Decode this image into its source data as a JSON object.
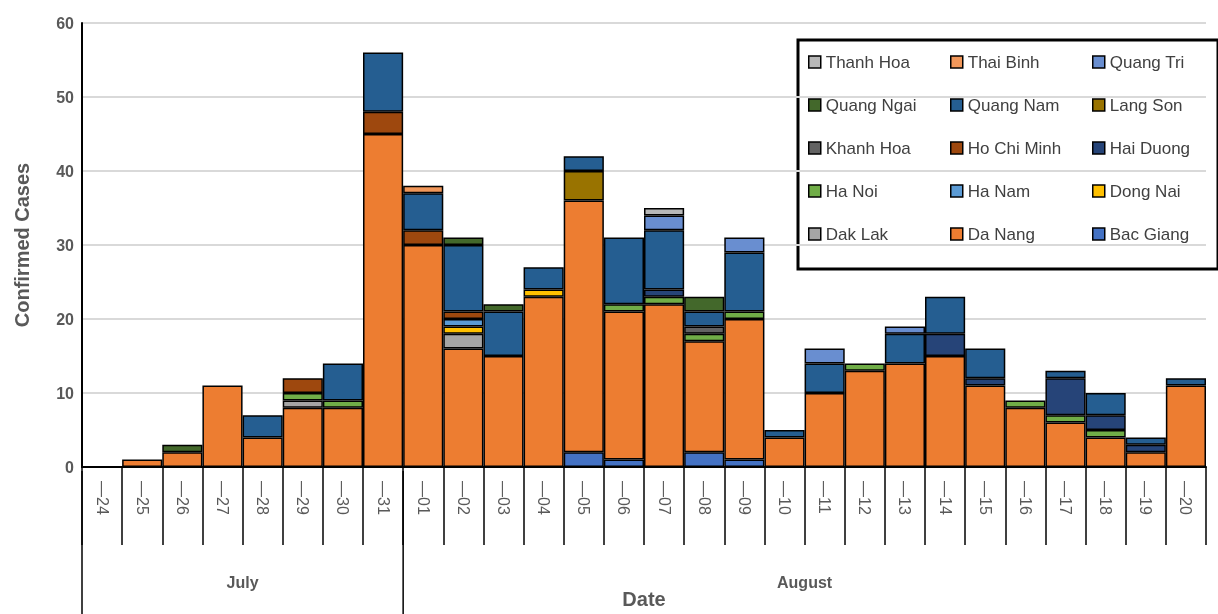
{
  "chart_data": {
    "type": "bar",
    "stacked": true,
    "xlabel": "Date",
    "ylabel": "Confirmed Cases",
    "categories": [
      "—24",
      "—25",
      "—26",
      "—27",
      "—28",
      "—29",
      "—30",
      "—31",
      "—01",
      "—02",
      "—03",
      "—04",
      "—05",
      "—06",
      "—07",
      "—08",
      "—09",
      "—10",
      "—11",
      "—12",
      "—13",
      "—14",
      "—15",
      "—16",
      "—17",
      "—18",
      "—19",
      "—20"
    ],
    "annotations": [
      "July",
      "August"
    ],
    "ylim": [
      0,
      60
    ],
    "yticks": [
      0,
      10,
      20,
      30,
      40,
      50,
      60
    ],
    "grid": "y",
    "legend": "top right",
    "series": [
      {
        "name": "Bac Giang",
        "color": "#4472c4",
        "values": [
          null,
          null,
          null,
          null,
          null,
          null,
          null,
          null,
          null,
          null,
          null,
          null,
          2,
          1,
          null,
          2,
          1,
          null,
          null,
          null,
          null,
          null,
          null,
          null,
          null,
          null,
          null,
          null
        ]
      },
      {
        "name": "Da Nang",
        "color": "#ed7d31",
        "values": [
          null,
          1,
          2,
          11,
          4,
          8,
          8,
          45,
          30,
          16,
          15,
          23,
          34,
          20,
          22,
          15,
          19,
          4,
          10,
          13,
          14,
          15,
          11,
          8,
          6,
          4,
          2,
          11
        ]
      },
      {
        "name": "Dak Lak",
        "color": "#a5a5a5",
        "values": [
          null,
          null,
          null,
          null,
          null,
          1,
          null,
          null,
          null,
          2,
          null,
          null,
          null,
          null,
          null,
          null,
          null,
          null,
          null,
          null,
          null,
          null,
          null,
          null,
          null,
          null,
          null,
          null
        ]
      },
      {
        "name": "Dong Nai",
        "color": "#ffc000",
        "values": [
          null,
          null,
          null,
          null,
          null,
          null,
          null,
          null,
          null,
          1,
          null,
          1,
          null,
          null,
          null,
          null,
          null,
          null,
          null,
          null,
          null,
          null,
          null,
          null,
          null,
          null,
          null,
          null
        ]
      },
      {
        "name": "Ha Nam",
        "color": "#5b9bd5",
        "values": [
          null,
          null,
          null,
          null,
          null,
          null,
          null,
          null,
          null,
          1,
          null,
          null,
          null,
          null,
          null,
          null,
          null,
          null,
          null,
          null,
          null,
          null,
          null,
          null,
          null,
          null,
          null,
          null
        ]
      },
      {
        "name": "Ha Noi",
        "color": "#70ad47",
        "values": [
          null,
          null,
          null,
          null,
          null,
          1,
          1,
          null,
          null,
          null,
          null,
          null,
          null,
          1,
          1,
          1,
          1,
          null,
          null,
          1,
          null,
          null,
          null,
          1,
          1,
          1,
          null,
          null
        ]
      },
      {
        "name": "Hai Duong",
        "color": "#264478",
        "values": [
          null,
          null,
          null,
          null,
          null,
          null,
          null,
          null,
          null,
          null,
          null,
          null,
          null,
          null,
          1,
          null,
          null,
          null,
          null,
          null,
          null,
          3,
          1,
          null,
          5,
          2,
          1,
          null
        ]
      },
      {
        "name": "Ho Chi Minh",
        "color": "#9e480e",
        "values": [
          null,
          null,
          null,
          null,
          null,
          2,
          null,
          3,
          2,
          1,
          null,
          null,
          null,
          null,
          null,
          null,
          null,
          null,
          null,
          null,
          null,
          null,
          null,
          null,
          null,
          null,
          null,
          null
        ]
      },
      {
        "name": "Khanh Hoa",
        "color": "#636363",
        "values": [
          null,
          null,
          null,
          null,
          null,
          null,
          null,
          null,
          null,
          null,
          null,
          null,
          null,
          null,
          null,
          1,
          null,
          null,
          null,
          null,
          null,
          null,
          null,
          null,
          null,
          null,
          null,
          null
        ]
      },
      {
        "name": "Lang Son",
        "color": "#997300",
        "values": [
          null,
          null,
          null,
          null,
          null,
          null,
          null,
          null,
          null,
          null,
          null,
          null,
          4,
          null,
          null,
          null,
          null,
          null,
          null,
          null,
          null,
          null,
          null,
          null,
          null,
          null,
          null,
          null
        ]
      },
      {
        "name": "Quang Nam",
        "color": "#255e91",
        "values": [
          null,
          null,
          null,
          null,
          3,
          null,
          5,
          8,
          5,
          9,
          6,
          3,
          2,
          9,
          8,
          2,
          8,
          1,
          4,
          null,
          4,
          5,
          4,
          null,
          1,
          3,
          1,
          1
        ]
      },
      {
        "name": "Quang Ngai",
        "color": "#43682b",
        "values": [
          null,
          null,
          1,
          null,
          null,
          null,
          null,
          null,
          null,
          1,
          1,
          null,
          null,
          null,
          null,
          2,
          null,
          null,
          null,
          null,
          null,
          null,
          null,
          null,
          null,
          null,
          null,
          null
        ]
      },
      {
        "name": "Quang Tri",
        "color": "#698ed0",
        "values": [
          null,
          null,
          null,
          null,
          null,
          null,
          null,
          null,
          null,
          null,
          null,
          null,
          null,
          null,
          2,
          null,
          2,
          null,
          2,
          null,
          1,
          null,
          null,
          null,
          null,
          null,
          null,
          null
        ]
      },
      {
        "name": "Thai Binh",
        "color": "#f1975a",
        "values": [
          null,
          null,
          null,
          null,
          null,
          null,
          null,
          null,
          1,
          null,
          null,
          null,
          null,
          null,
          null,
          null,
          null,
          null,
          null,
          null,
          null,
          null,
          null,
          null,
          null,
          null,
          null,
          null
        ]
      },
      {
        "name": "Thanh Hoa",
        "color": "#b7b7b7",
        "values": [
          null,
          null,
          null,
          null,
          null,
          null,
          null,
          null,
          null,
          null,
          null,
          null,
          null,
          null,
          1,
          null,
          null,
          null,
          null,
          null,
          null,
          null,
          null,
          null,
          null,
          null,
          null,
          null
        ]
      }
    ]
  }
}
